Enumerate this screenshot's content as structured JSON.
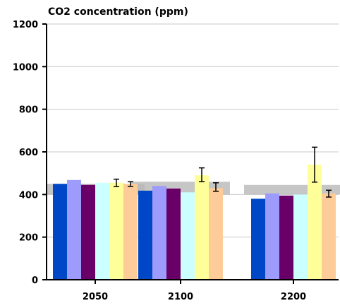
{
  "chart_data": {
    "type": "bar",
    "title": "CO2 concentration (ppm)",
    "xlabel": "",
    "ylabel": "",
    "ylim": [
      0,
      1200
    ],
    "yticks": [
      0,
      200,
      400,
      600,
      800,
      1000,
      1200
    ],
    "grid": true,
    "categories": [
      "2050",
      "2100",
      "2200"
    ],
    "bands": [
      {
        "low": 400,
        "high": 450
      },
      {
        "low": 400,
        "high": 460
      },
      {
        "low": 400,
        "high": 445
      }
    ],
    "series": [
      {
        "color": "#0047c8",
        "values": [
          450,
          418,
          380
        ]
      },
      {
        "color": "#9d9cfd",
        "values": [
          468,
          440,
          405
        ]
      },
      {
        "color": "#680068",
        "values": [
          445,
          428,
          395
        ]
      },
      {
        "color": "#ccffff",
        "values": [
          455,
          410,
          400
        ]
      },
      {
        "color": "#ffff99",
        "values": [
          455,
          490,
          540
        ],
        "errors": [
          [
            437,
            472
          ],
          [
            460,
            525
          ],
          [
            458,
            622
          ]
        ]
      },
      {
        "color": "#fecc98",
        "values": [
          450,
          430,
          405
        ],
        "errors": [
          [
            438,
            460
          ],
          [
            415,
            455
          ],
          [
            388,
            420
          ]
        ]
      }
    ]
  }
}
